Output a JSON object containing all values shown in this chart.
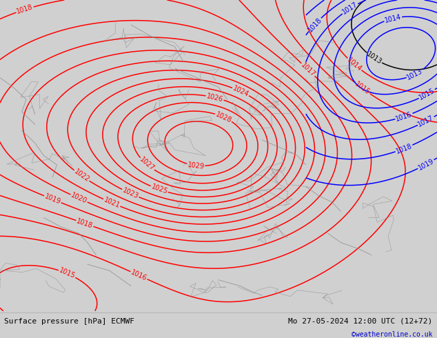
{
  "title_left": "Surface pressure [hPa] ECMWF",
  "title_right": "Mo 27-05-2024 12:00 UTC (12+72)",
  "copyright": "©weatheronline.co.uk",
  "bg_color": "#d0d0d0",
  "map_bg_color": "#b8e8b0",
  "fig_width": 6.34,
  "fig_height": 4.9,
  "dpi": 100,
  "contour_color_red": "#ff0000",
  "contour_color_blue": "#0000ff",
  "contour_color_black": "#000000",
  "label_fontsize": 7,
  "footer_fontsize": 8,
  "copyright_color": "#0000cc",
  "footer_text_color": "#000000"
}
